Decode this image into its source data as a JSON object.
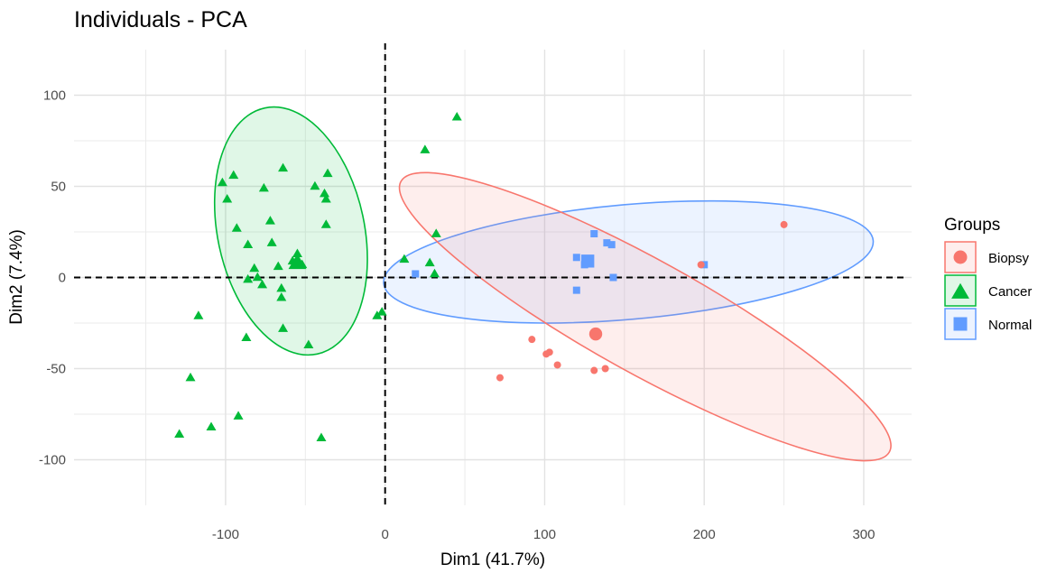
{
  "chart_data": {
    "type": "scatter",
    "title": "Individuals - PCA",
    "xlabel": "Dim1 (41.7%)",
    "ylabel": "Dim2 (7.4%)",
    "xlim": [
      -195,
      330
    ],
    "ylim": [
      -125,
      125
    ],
    "xticks": [
      -100,
      0,
      100,
      200,
      300
    ],
    "yticks": [
      -100,
      -50,
      0,
      50,
      100
    ],
    "xtick_labels": [
      "-100",
      "0",
      "100",
      "200",
      "300"
    ],
    "ytick_labels": [
      "-100",
      "-50",
      "0",
      "50",
      "100"
    ],
    "grid": true,
    "legend": {
      "title": "Groups",
      "position": "right"
    },
    "series": [
      {
        "name": "Cancer",
        "color": "#00BA38",
        "marker": "triangle",
        "points": [
          [
            45,
            88
          ],
          [
            25,
            70
          ],
          [
            -95,
            56
          ],
          [
            -102,
            52
          ],
          [
            -64,
            60
          ],
          [
            -36,
            57
          ],
          [
            -44,
            50
          ],
          [
            -38,
            46
          ],
          [
            -37,
            43
          ],
          [
            -99,
            43
          ],
          [
            -76,
            49
          ],
          [
            -72,
            31
          ],
          [
            -93,
            27
          ],
          [
            -37,
            29
          ],
          [
            -86,
            18
          ],
          [
            -71,
            19
          ],
          [
            -55,
            13
          ],
          [
            -58,
            9
          ],
          [
            -52,
            7
          ],
          [
            -67,
            6
          ],
          [
            -82,
            5
          ],
          [
            -80,
            0
          ],
          [
            -86,
            -1
          ],
          [
            -77,
            -4
          ],
          [
            -65,
            -6
          ],
          [
            -65,
            -11
          ],
          [
            -117,
            -21
          ],
          [
            -48,
            -37
          ],
          [
            -87,
            -33
          ],
          [
            -64,
            -28
          ],
          [
            -122,
            -55
          ],
          [
            -109,
            -82
          ],
          [
            -129,
            -86
          ],
          [
            -92,
            -76
          ],
          [
            -40,
            -88
          ],
          [
            32,
            24
          ],
          [
            12,
            10
          ],
          [
            28,
            8
          ],
          [
            31,
            2
          ],
          [
            -5,
            -21
          ],
          [
            -2,
            -19
          ]
        ],
        "centroid": [
          -55,
          8
        ],
        "ellipse": {
          "cx": -59,
          "cy": 25.5,
          "rx": 92,
          "ry": 138,
          "rotation_deg": 12
        }
      },
      {
        "name": "Normal",
        "color": "#619CFF",
        "marker": "square",
        "points": [
          [
            131,
            24
          ],
          [
            139,
            19
          ],
          [
            142,
            18
          ],
          [
            120,
            11
          ],
          [
            128,
            8
          ],
          [
            125,
            7
          ],
          [
            143,
            0
          ],
          [
            120,
            -7
          ],
          [
            19,
            2
          ],
          [
            200,
            7
          ]
        ],
        "centroid": [
          127,
          9
        ],
        "ellipse": {
          "cx": 152.5,
          "cy": 8.5,
          "rx": 308,
          "ry": 63,
          "rotation_deg": 5
        }
      },
      {
        "name": "Biopsy",
        "color": "#F8766D",
        "marker": "circle",
        "points": [
          [
            250,
            29
          ],
          [
            198,
            7
          ],
          [
            92,
            -34
          ],
          [
            103,
            -41
          ],
          [
            101,
            -42
          ],
          [
            108,
            -48
          ],
          [
            131,
            -51
          ],
          [
            138,
            -50
          ],
          [
            72,
            -55
          ]
        ],
        "centroid": [
          132,
          -31
        ],
        "ellipse": {
          "cx": 163,
          "cy": -21.5,
          "rx": 350,
          "ry": 62,
          "rotation_deg": -29
        }
      }
    ]
  }
}
